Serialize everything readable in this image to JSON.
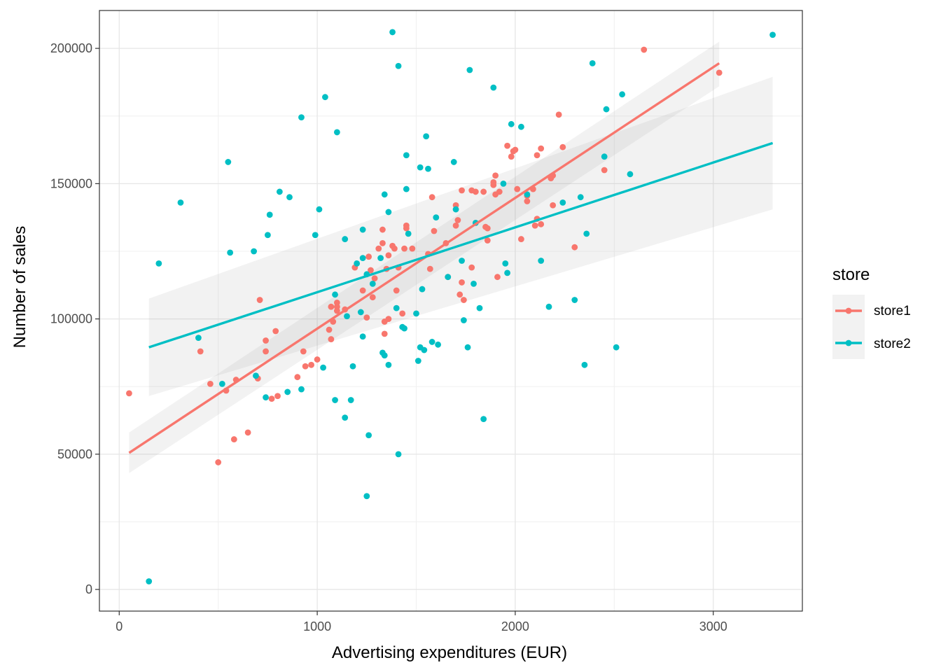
{
  "chart_data": {
    "type": "scatter",
    "title": "",
    "xlabel": "Advertising expenditures (EUR)",
    "ylabel": "Number of sales",
    "xlim": [
      -100,
      3450
    ],
    "ylim": [
      -8000,
      214000
    ],
    "x_ticks": [
      0,
      1000,
      2000,
      3000
    ],
    "x_tick_labels": [
      "0",
      "1000",
      "2000",
      "3000"
    ],
    "y_ticks": [
      0,
      50000,
      100000,
      150000,
      200000
    ],
    "y_tick_labels": [
      "0",
      "50000",
      "100000",
      "150000",
      "200000"
    ],
    "grid": true,
    "legend": {
      "title": "store",
      "position": "right"
    },
    "series": [
      {
        "name": "store1",
        "color": "#F8766D",
        "points": [
          [
            50,
            72500
          ],
          [
            410,
            88000
          ],
          [
            460,
            76000
          ],
          [
            500,
            47000
          ],
          [
            540,
            73500
          ],
          [
            580,
            55500
          ],
          [
            590,
            77500
          ],
          [
            650,
            58000
          ],
          [
            700,
            78000
          ],
          [
            710,
            107000
          ],
          [
            740,
            92000
          ],
          [
            740,
            88000
          ],
          [
            770,
            70500
          ],
          [
            790,
            95500
          ],
          [
            800,
            71500
          ],
          [
            900,
            78500
          ],
          [
            930,
            88000
          ],
          [
            940,
            82500
          ],
          [
            970,
            83000
          ],
          [
            1000,
            85000
          ],
          [
            1060,
            96000
          ],
          [
            1070,
            92500
          ],
          [
            1070,
            104500
          ],
          [
            1080,
            99000
          ],
          [
            1100,
            106000
          ],
          [
            1100,
            104500
          ],
          [
            1100,
            103000
          ],
          [
            1140,
            103500
          ],
          [
            1190,
            119000
          ],
          [
            1230,
            110500
          ],
          [
            1250,
            100500
          ],
          [
            1260,
            123000
          ],
          [
            1270,
            118000
          ],
          [
            1280,
            108000
          ],
          [
            1290,
            115000
          ],
          [
            1310,
            126000
          ],
          [
            1330,
            133000
          ],
          [
            1330,
            128000
          ],
          [
            1340,
            99000
          ],
          [
            1340,
            94500
          ],
          [
            1350,
            118500
          ],
          [
            1360,
            123500
          ],
          [
            1360,
            100000
          ],
          [
            1380,
            127000
          ],
          [
            1390,
            126000
          ],
          [
            1400,
            110500
          ],
          [
            1410,
            119000
          ],
          [
            1430,
            102000
          ],
          [
            1440,
            126000
          ],
          [
            1450,
            134500
          ],
          [
            1450,
            133500
          ],
          [
            1480,
            126000
          ],
          [
            1560,
            124000
          ],
          [
            1570,
            118500
          ],
          [
            1580,
            145000
          ],
          [
            1590,
            132500
          ],
          [
            1650,
            128000
          ],
          [
            1660,
            115500
          ],
          [
            1700,
            142000
          ],
          [
            1700,
            134500
          ],
          [
            1710,
            136500
          ],
          [
            1720,
            109000
          ],
          [
            1730,
            147500
          ],
          [
            1730,
            113500
          ],
          [
            1740,
            107000
          ],
          [
            1780,
            119000
          ],
          [
            1780,
            147500
          ],
          [
            1800,
            147000
          ],
          [
            1840,
            147000
          ],
          [
            1850,
            134000
          ],
          [
            1860,
            133500
          ],
          [
            1860,
            129000
          ],
          [
            1890,
            149500
          ],
          [
            1890,
            150500
          ],
          [
            1900,
            153000
          ],
          [
            1900,
            146000
          ],
          [
            1910,
            115500
          ],
          [
            1920,
            147000
          ],
          [
            1960,
            164000
          ],
          [
            1980,
            160000
          ],
          [
            1990,
            162000
          ],
          [
            2000,
            162500
          ],
          [
            2010,
            148000
          ],
          [
            2030,
            129500
          ],
          [
            2060,
            143500
          ],
          [
            2060,
            145500
          ],
          [
            2090,
            148000
          ],
          [
            2100,
            134500
          ],
          [
            2110,
            137000
          ],
          [
            2110,
            160500
          ],
          [
            2130,
            163000
          ],
          [
            2130,
            135000
          ],
          [
            2220,
            175500
          ],
          [
            2240,
            163500
          ],
          [
            2180,
            152000
          ],
          [
            2190,
            153000
          ],
          [
            2190,
            142000
          ],
          [
            2300,
            126500
          ],
          [
            2450,
            155000
          ],
          [
            2650,
            199500
          ],
          [
            3030,
            191000
          ]
        ]
      },
      {
        "name": "store2",
        "color": "#00BFC4",
        "points": [
          [
            150,
            3000
          ],
          [
            200,
            120500
          ],
          [
            310,
            143000
          ],
          [
            400,
            93000
          ],
          [
            520,
            76000
          ],
          [
            550,
            158000
          ],
          [
            560,
            124500
          ],
          [
            680,
            125000
          ],
          [
            690,
            79000
          ],
          [
            740,
            71000
          ],
          [
            750,
            131000
          ],
          [
            760,
            138500
          ],
          [
            810,
            147000
          ],
          [
            850,
            73000
          ],
          [
            860,
            145000
          ],
          [
            920,
            174500
          ],
          [
            920,
            74000
          ],
          [
            990,
            131000
          ],
          [
            1010,
            140500
          ],
          [
            1030,
            82000
          ],
          [
            1040,
            182000
          ],
          [
            1090,
            109000
          ],
          [
            1090,
            70000
          ],
          [
            1100,
            169000
          ],
          [
            1140,
            129500
          ],
          [
            1140,
            63500
          ],
          [
            1150,
            101000
          ],
          [
            1170,
            70000
          ],
          [
            1180,
            82500
          ],
          [
            1200,
            120500
          ],
          [
            1220,
            102500
          ],
          [
            1230,
            122500
          ],
          [
            1230,
            133000
          ],
          [
            1230,
            93500
          ],
          [
            1250,
            116500
          ],
          [
            1260,
            57000
          ],
          [
            1250,
            34500
          ],
          [
            1280,
            113000
          ],
          [
            1320,
            122500
          ],
          [
            1330,
            87500
          ],
          [
            1340,
            146000
          ],
          [
            1340,
            86500
          ],
          [
            1360,
            139500
          ],
          [
            1360,
            83000
          ],
          [
            1380,
            206000
          ],
          [
            1400,
            104000
          ],
          [
            1410,
            50000
          ],
          [
            1410,
            193500
          ],
          [
            1430,
            97000
          ],
          [
            1440,
            96500
          ],
          [
            1450,
            148000
          ],
          [
            1450,
            160500
          ],
          [
            1460,
            131500
          ],
          [
            1500,
            102000
          ],
          [
            1510,
            84500
          ],
          [
            1520,
            89500
          ],
          [
            1530,
            111000
          ],
          [
            1520,
            156000
          ],
          [
            1540,
            88500
          ],
          [
            1550,
            167500
          ],
          [
            1560,
            155500
          ],
          [
            1580,
            91500
          ],
          [
            1600,
            137500
          ],
          [
            1610,
            90500
          ],
          [
            1660,
            115500
          ],
          [
            1690,
            158000
          ],
          [
            1700,
            140500
          ],
          [
            1730,
            121500
          ],
          [
            1740,
            99500
          ],
          [
            1760,
            89500
          ],
          [
            1770,
            192000
          ],
          [
            1790,
            113000
          ],
          [
            1800,
            135500
          ],
          [
            1820,
            104000
          ],
          [
            1840,
            63000
          ],
          [
            1890,
            185500
          ],
          [
            1940,
            150000
          ],
          [
            1950,
            120500
          ],
          [
            1960,
            117000
          ],
          [
            1980,
            172000
          ],
          [
            2030,
            171000
          ],
          [
            2060,
            146000
          ],
          [
            2170,
            104500
          ],
          [
            2240,
            143000
          ],
          [
            2130,
            121500
          ],
          [
            2300,
            107000
          ],
          [
            2330,
            145000
          ],
          [
            2360,
            131500
          ],
          [
            2350,
            83000
          ],
          [
            2390,
            194500
          ],
          [
            2450,
            160000
          ],
          [
            2460,
            177500
          ],
          [
            2510,
            89500
          ],
          [
            2540,
            183000
          ],
          [
            2580,
            153500
          ],
          [
            3300,
            205000
          ]
        ]
      }
    ],
    "fits": [
      {
        "name": "store1",
        "color": "#F8766D",
        "x": [
          50,
          3030
        ],
        "y": [
          50500,
          194500
        ],
        "ci_x": [
          50,
          3030
        ],
        "ci_lower": [
          43000,
          186000
        ],
        "ci_upper": [
          58000,
          202500
        ]
      },
      {
        "name": "store2",
        "color": "#00BFC4",
        "x": [
          150,
          3300
        ],
        "y": [
          89500,
          165000
        ],
        "ci_x": [
          150,
          3300
        ],
        "ci_lower": [
          71500,
          140500
        ],
        "ci_upper": [
          107500,
          189500
        ]
      }
    ]
  }
}
